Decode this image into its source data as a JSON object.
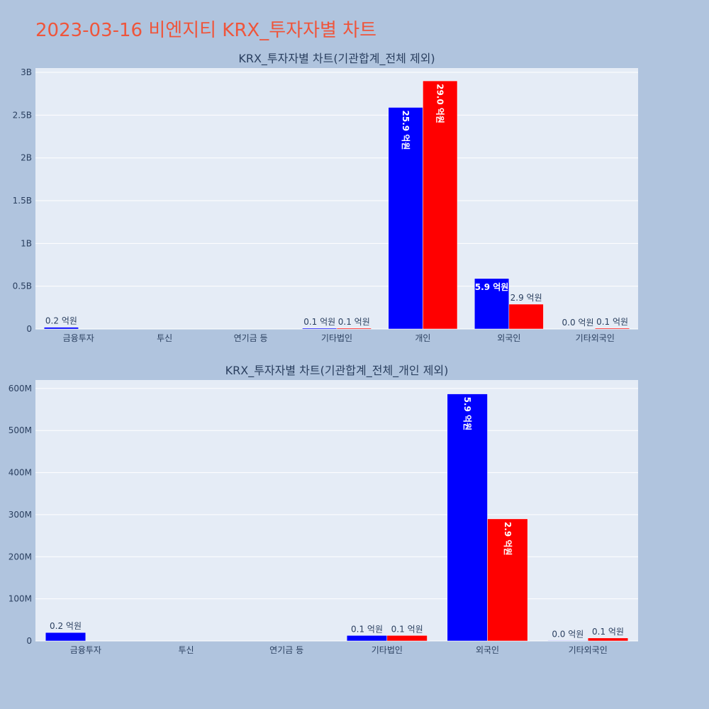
{
  "page": {
    "title": "2023-03-16 비엔지티 KRX_투자자별 차트",
    "title_color": "#ef553b",
    "background": "#b0c4de",
    "plot_background": "#e5ecf6"
  },
  "chart_data": [
    {
      "type": "bar",
      "title": "KRX_투자자별 차트(기관합계_전체 제외)",
      "categories": [
        "금융투자",
        "투신",
        "연기금 등",
        "기타법인",
        "개인",
        "외국인",
        "기타외국인"
      ],
      "series": [
        {
          "color": "#0000ff",
          "values": [
            20000000,
            0,
            0,
            10000000,
            2590000000,
            590000000,
            1000000
          ],
          "labels": [
            "0.2 억원",
            "",
            "",
            "0.1 억원",
            "25.9 억원",
            "5.9 억원",
            "0.0 억원"
          ]
        },
        {
          "color": "#ff0000",
          "values": [
            0,
            0,
            0,
            10000000,
            2900000000,
            290000000,
            10000000
          ],
          "labels": [
            "",
            "",
            "",
            "0.1 억원",
            "29.0 억원",
            "2.9 억원",
            "0.1 억원"
          ]
        }
      ],
      "ylim": [
        0,
        3050000000
      ],
      "yticks": [
        0,
        500000000,
        1000000000,
        1500000000,
        2000000000,
        2500000000,
        3000000000
      ],
      "ytick_labels": [
        "0",
        "0.5B",
        "1B",
        "1.5B",
        "2B",
        "2.5B",
        "3B"
      ],
      "xlabel": "",
      "ylabel": "",
      "grid": true
    },
    {
      "type": "bar",
      "title": "KRX_투자자별 차트(기관합계_전체_개인 제외)",
      "categories": [
        "금융투자",
        "투신",
        "연기금 등",
        "기타법인",
        "외국인",
        "기타외국인"
      ],
      "series": [
        {
          "color": "#0000ff",
          "values": [
            20000000,
            0,
            0,
            13000000,
            587000000,
            1000000
          ],
          "labels": [
            "0.2 억원",
            "",
            "",
            "0.1 억원",
            "5.9 억원",
            "0.0 억원"
          ]
        },
        {
          "color": "#ff0000",
          "values": [
            0,
            0,
            0,
            13000000,
            290000000,
            7000000
          ],
          "labels": [
            "",
            "",
            "",
            "0.1 억원",
            "2.9 억원",
            "0.1 억원"
          ]
        }
      ],
      "ylim": [
        0,
        620000000
      ],
      "yticks": [
        0,
        100000000,
        200000000,
        300000000,
        400000000,
        500000000,
        600000000
      ],
      "ytick_labels": [
        "0",
        "100M",
        "200M",
        "300M",
        "400M",
        "500M",
        "600M"
      ],
      "xlabel": "",
      "ylabel": "",
      "grid": true
    }
  ]
}
